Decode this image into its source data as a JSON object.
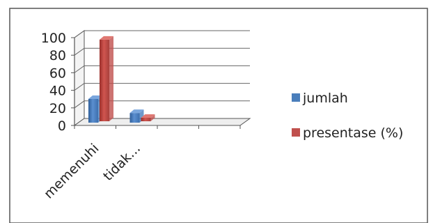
{
  "chart_data": {
    "type": "bar",
    "title": "",
    "xlabel": "",
    "ylabel": "",
    "ylim": [
      0,
      100
    ],
    "yticks": [
      0,
      20,
      40,
      60,
      80,
      100
    ],
    "categories": [
      "memenuhi",
      "tidak..."
    ],
    "series": [
      {
        "name": "jumlah",
        "values": [
          27,
          11
        ],
        "color": "#4a7ebb"
      },
      {
        "name": "presentase (%)",
        "values": [
          93,
          4
        ],
        "color": "#c0504d"
      }
    ],
    "grid": true,
    "legend": "right",
    "style": "3d-clustered-column"
  }
}
